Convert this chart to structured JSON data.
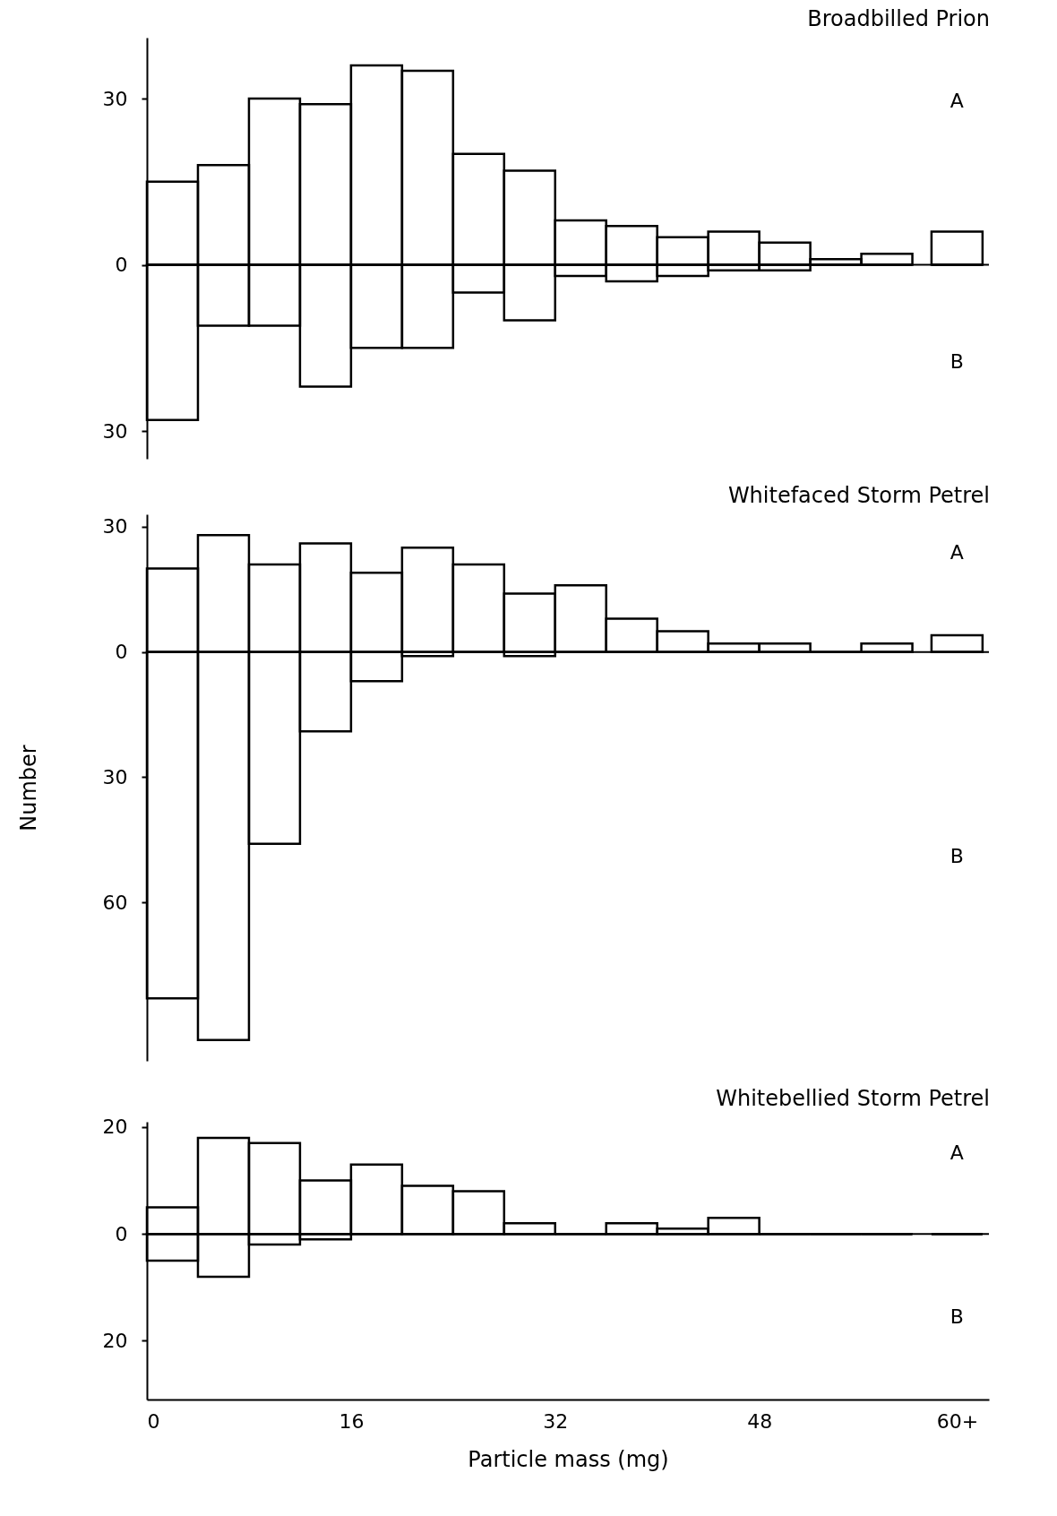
{
  "chart_data": [
    {
      "type": "histogram",
      "title": "Broadbilled Prion",
      "bins": [
        0,
        4,
        8,
        12,
        16,
        20,
        24,
        28,
        32,
        36,
        40,
        44,
        48,
        52,
        56,
        60,
        61.5,
        65.5
      ],
      "xlim": [
        0,
        66
      ],
      "ylim": [
        -35,
        41
      ],
      "yticks": [
        {
          "value": -30,
          "label": "30"
        },
        0,
        30
      ],
      "tick_labels": "y",
      "ref_lines": [
        {
          "axis": "y",
          "value": 0,
          "color": "#000000"
        }
      ],
      "series": [
        {
          "name": "A",
          "color": "#000000",
          "values": [
            15,
            18,
            30,
            29,
            36,
            35,
            20,
            17,
            8,
            7,
            5,
            6,
            4,
            1,
            2,
            null,
            6
          ]
        },
        {
          "name": "B",
          "color": "#000000",
          "values": [
            -28,
            -11,
            -11,
            -22,
            -15,
            -15,
            -5,
            -10,
            -2,
            -3,
            -2,
            -1,
            -1,
            0,
            0,
            null,
            0
          ]
        }
      ]
    },
    {
      "type": "histogram",
      "title": "Whitefaced Storm Petrel",
      "ylabel": "Number",
      "bins": [
        0,
        4,
        8,
        12,
        16,
        20,
        24,
        28,
        32,
        36,
        40,
        44,
        48,
        52,
        56,
        60,
        61.5,
        65.5
      ],
      "xlim": [
        0,
        66
      ],
      "ylim": [
        -98,
        33
      ],
      "yticks": [
        {
          "value": -60,
          "label": "60"
        },
        {
          "value": -30,
          "label": "30"
        },
        0,
        30
      ],
      "tick_labels": "y",
      "ref_lines": [
        {
          "axis": "y",
          "value": 0,
          "color": "#000000"
        }
      ],
      "series": [
        {
          "name": "A",
          "color": "#000000",
          "values": [
            20,
            28,
            21,
            26,
            19,
            25,
            21,
            14,
            16,
            8,
            5,
            2,
            2,
            0,
            2,
            null,
            4
          ]
        },
        {
          "name": "B",
          "color": "#000000",
          "values": [
            -83,
            -93,
            -46,
            -19,
            -7,
            -1,
            0,
            -1,
            0,
            0,
            0,
            0,
            0,
            0,
            0,
            null,
            0
          ]
        }
      ]
    },
    {
      "type": "histogram",
      "title": "Whitebellied Storm Petrel",
      "xlabel": "Particle mass (mg)",
      "bins": [
        0,
        4,
        8,
        12,
        16,
        20,
        24,
        28,
        32,
        36,
        40,
        44,
        48,
        52,
        56,
        60,
        61.5,
        65.5
      ],
      "xlim": [
        0,
        66
      ],
      "xticks": [
        0,
        16,
        32,
        48,
        {
          "value": 63.5,
          "label": "60+"
        }
      ],
      "ylim": [
        -31,
        21
      ],
      "yticks": [
        {
          "value": -20,
          "label": "20"
        },
        0,
        20
      ],
      "ref_lines": [
        {
          "axis": "y",
          "value": 0,
          "color": "#000000"
        }
      ],
      "series": [
        {
          "name": "A",
          "color": "#000000",
          "values": [
            5,
            18,
            17,
            10,
            13,
            9,
            8,
            2,
            0,
            2,
            1,
            3,
            0,
            0,
            0,
            null,
            0
          ]
        },
        {
          "name": "B",
          "color": "#000000",
          "values": [
            -5,
            -8,
            -2,
            -1,
            0,
            0,
            0,
            0,
            0,
            0,
            0,
            0,
            0,
            0,
            0,
            null,
            0
          ]
        }
      ]
    }
  ]
}
